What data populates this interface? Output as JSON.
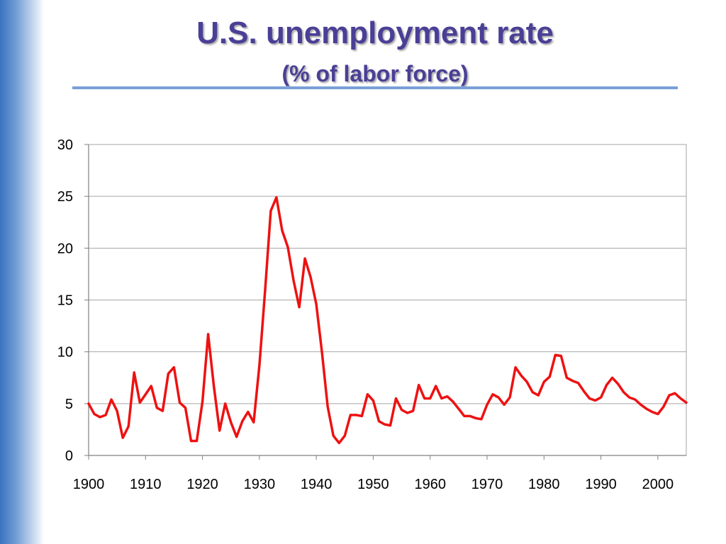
{
  "slide": {
    "title": "U.S. unemployment rate",
    "subtitle": "(% of labor force)"
  },
  "colors": {
    "title": "#4a3f96",
    "rule": "#7a9fd8",
    "series": "#ee1111",
    "grid": "#a6a6a6"
  },
  "chart_data": {
    "type": "line",
    "title": "U.S. unemployment rate (% of labor force)",
    "xlabel": "",
    "ylabel": "",
    "xlim": [
      1900,
      2005
    ],
    "ylim": [
      0,
      30
    ],
    "xticks": [
      1900,
      1910,
      1920,
      1930,
      1940,
      1950,
      1960,
      1970,
      1980,
      1990,
      2000
    ],
    "yticks": [
      0,
      5,
      10,
      15,
      20,
      25,
      30
    ],
    "grid": "horizontal",
    "legend": "none",
    "series": [
      {
        "color": "#ee1111",
        "x": [
          1900,
          1901,
          1902,
          1903,
          1904,
          1905,
          1906,
          1907,
          1908,
          1909,
          1910,
          1911,
          1912,
          1913,
          1914,
          1915,
          1916,
          1917,
          1918,
          1919,
          1920,
          1921,
          1922,
          1923,
          1924,
          1925,
          1926,
          1927,
          1928,
          1929,
          1930,
          1931,
          1932,
          1933,
          1934,
          1935,
          1936,
          1937,
          1938,
          1939,
          1940,
          1941,
          1942,
          1943,
          1944,
          1945,
          1946,
          1947,
          1948,
          1949,
          1950,
          1951,
          1952,
          1953,
          1954,
          1955,
          1956,
          1957,
          1958,
          1959,
          1960,
          1961,
          1962,
          1963,
          1964,
          1965,
          1966,
          1967,
          1968,
          1969,
          1970,
          1971,
          1972,
          1973,
          1974,
          1975,
          1976,
          1977,
          1978,
          1979,
          1980,
          1981,
          1982,
          1983,
          1984,
          1985,
          1986,
          1987,
          1988,
          1989,
          1990,
          1991,
          1992,
          1993,
          1994,
          1995,
          1996,
          1997,
          1998,
          1999,
          2000,
          2001,
          2002,
          2003,
          2004,
          2005
        ],
        "values": [
          5.0,
          4.0,
          3.7,
          3.9,
          5.4,
          4.3,
          1.7,
          2.8,
          8.0,
          5.1,
          5.9,
          6.7,
          4.6,
          4.3,
          7.9,
          8.5,
          5.1,
          4.6,
          1.4,
          1.4,
          5.2,
          11.7,
          6.7,
          2.4,
          5.0,
          3.2,
          1.8,
          3.3,
          4.2,
          3.2,
          8.7,
          15.9,
          23.6,
          24.9,
          21.7,
          20.1,
          16.9,
          14.3,
          19.0,
          17.2,
          14.6,
          9.9,
          4.7,
          1.9,
          1.2,
          1.9,
          3.9,
          3.9,
          3.8,
          5.9,
          5.3,
          3.3,
          3.0,
          2.9,
          5.5,
          4.4,
          4.1,
          4.3,
          6.8,
          5.5,
          5.5,
          6.7,
          5.5,
          5.7,
          5.2,
          4.5,
          3.8,
          3.8,
          3.6,
          3.5,
          4.9,
          5.9,
          5.6,
          4.9,
          5.6,
          8.5,
          7.7,
          7.1,
          6.1,
          5.8,
          7.1,
          7.6,
          9.7,
          9.6,
          7.5,
          7.2,
          7.0,
          6.2,
          5.5,
          5.3,
          5.6,
          6.8,
          7.5,
          6.9,
          6.1,
          5.6,
          5.4,
          4.9,
          4.5,
          4.2,
          4.0,
          4.7,
          5.8,
          6.0,
          5.5,
          5.1
        ]
      }
    ]
  }
}
